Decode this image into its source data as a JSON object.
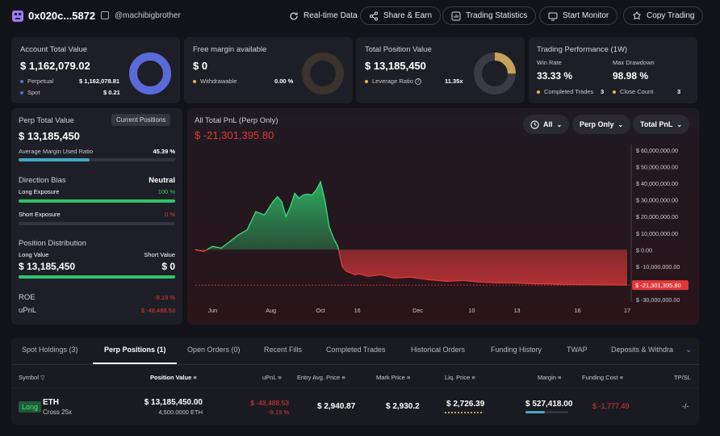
{
  "header": {
    "address": "0x020c...5872",
    "handle": "@machibigbrother",
    "buttons": {
      "realtime": "Real-time Data",
      "share": "Share & Earn",
      "stats": "Trading Statistics",
      "monitor": "Start Monitor",
      "copy": "Copy Trading"
    }
  },
  "account": {
    "title": "Account Total Value",
    "value": "$ 1,162,079.02",
    "perpetual_label": "Perpetual",
    "perpetual_value": "$ 1,162,078.81",
    "spot_label": "Spot",
    "spot_value": "$ 0.21",
    "donut_fraction": 1.0,
    "color": "#5a6ad8"
  },
  "margin": {
    "title": "Free margin available",
    "value": "$ 0",
    "withdrawable_label": "Withdrawable",
    "withdrawable_value": "0.00 %",
    "donut_fraction": 0.0
  },
  "position": {
    "title": "Total Position Value",
    "value": "$ 13,185,450",
    "leverage_label": "Leverage Ratio",
    "leverage_value": "11.35x",
    "donut_fraction": 0.25,
    "color": "#c9a25a"
  },
  "performance": {
    "title": "Trading Performance (1W)",
    "win_rate_label": "Win Rate",
    "win_rate": "33.33 %",
    "drawdown_label": "Max Drawdown",
    "drawdown": "98.98 %",
    "completed_label": "Completed Trades",
    "completed_value": "3",
    "close_label": "Close Count",
    "close_value": "3"
  },
  "perp": {
    "title": "Perp Total Value",
    "badge": "Current Positions",
    "value": "$ 13,185,450",
    "margin_used_label": "Average Margin Used Ratio",
    "margin_used_value": "45.39 %",
    "margin_used_fraction": 0.4539,
    "bias_label": "Direction Bias",
    "bias_value": "Neutral",
    "long_label": "Long Exposure",
    "long_value": "100 %",
    "long_fraction": 1.0,
    "short_label": "Short Exposure",
    "short_value": "0 %",
    "short_fraction": 0.0,
    "distribution_label": "Position Distribution",
    "long_value_label": "Long Value",
    "short_value_label": "Short Value",
    "long_total": "$ 13,185,450",
    "short_total": "$ 0",
    "distribution_fraction": 1.0,
    "roe_label": "ROE",
    "roe_value": "-9.19 %",
    "upnl_label": "uPnL",
    "upnl_value": "$ -48,488.53"
  },
  "pnl_chart": {
    "title": "All Total PnL (Perp Only)",
    "value": "$ -21,301,395.80",
    "filter_all": "All",
    "filter_perp": "Perp Only",
    "filter_total": "Total PnL"
  },
  "chart_data": {
    "type": "area",
    "title": "All Total PnL (Perp Only)",
    "x_ticks": [
      "Jun",
      "Aug",
      "Oct",
      "16",
      "Dec",
      "10",
      "13",
      "16",
      "17"
    ],
    "y_ticks": [
      "$ 60,000,000.00",
      "$ 50,000,000.00",
      "$ 40,000,000.00",
      "$ 30,000,000.00",
      "$ 20,000,000.00",
      "$ 10,000,000.00",
      "$ 0.00",
      "$ -10,000,000.00",
      "$ -20,000,000.00",
      "$ -30,000,000.00"
    ],
    "ylim": [
      -30000000,
      60000000
    ],
    "current_label": "$ -21,301,395.80",
    "current_value": -21301395.8,
    "x": [
      0,
      0.02,
      0.04,
      0.06,
      0.08,
      0.1,
      0.12,
      0.14,
      0.16,
      0.18,
      0.19,
      0.2,
      0.21,
      0.22,
      0.23,
      0.24,
      0.25,
      0.26,
      0.27,
      0.28,
      0.29,
      0.3,
      0.31,
      0.32,
      0.33,
      0.34,
      0.35,
      0.36,
      0.37,
      0.38,
      0.4,
      0.43,
      0.46,
      0.5,
      0.54,
      0.58,
      0.62,
      0.66,
      0.7,
      0.74,
      0.78,
      0.82,
      0.86,
      0.9,
      0.95,
      1.0
    ],
    "values": [
      0,
      -1000000,
      2000000,
      1000000,
      5000000,
      9000000,
      12000000,
      23000000,
      21000000,
      29000000,
      32000000,
      29000000,
      20000000,
      26000000,
      34000000,
      31000000,
      33000000,
      33500000,
      33000000,
      36000000,
      41000000,
      30000000,
      14000000,
      7000000,
      2000000,
      -10000000,
      -13000000,
      -14000000,
      -15000000,
      -14500000,
      -16000000,
      -15000000,
      -17000000,
      -16500000,
      -18000000,
      -19000000,
      -18500000,
      -19500000,
      -20000000,
      -20000000,
      -20500000,
      -20600000,
      -21000000,
      -21000000,
      -21200000,
      -21301395.8
    ]
  },
  "tabs": [
    "Spot Holdings (3)",
    "Perp Positions (1)",
    "Open Orders (0)",
    "Recent Fills",
    "Completed Trades",
    "Historical Orders",
    "Funding History",
    "TWAP",
    "Deposits & Withdra"
  ],
  "table": {
    "headers": {
      "symbol": "Symbol",
      "position_value": "Position Value",
      "upnl": "uPnL",
      "entry": "Entry Avg. Price",
      "mark": "Mark Price",
      "liq": "Liq. Price",
      "margin": "Margin",
      "funding": "Funding Cost",
      "tpsl": "TP/SL"
    },
    "row": {
      "side": "Long",
      "symbol": "ETH",
      "leverage": "Cross 25x",
      "position_value": "$ 13,185,450.00",
      "position_size": "4,500.0000 ETH",
      "upnl": "$ -48,488.53",
      "upnl_pct": "-9.19 %",
      "entry": "$ 2,940.87",
      "mark": "$ 2,930.2",
      "liq": "$ 2,726.39",
      "margin": "$ 527,418.00",
      "margin_fraction": 0.45,
      "funding": "$ -1,777.49",
      "tpsl": "-/-"
    }
  }
}
